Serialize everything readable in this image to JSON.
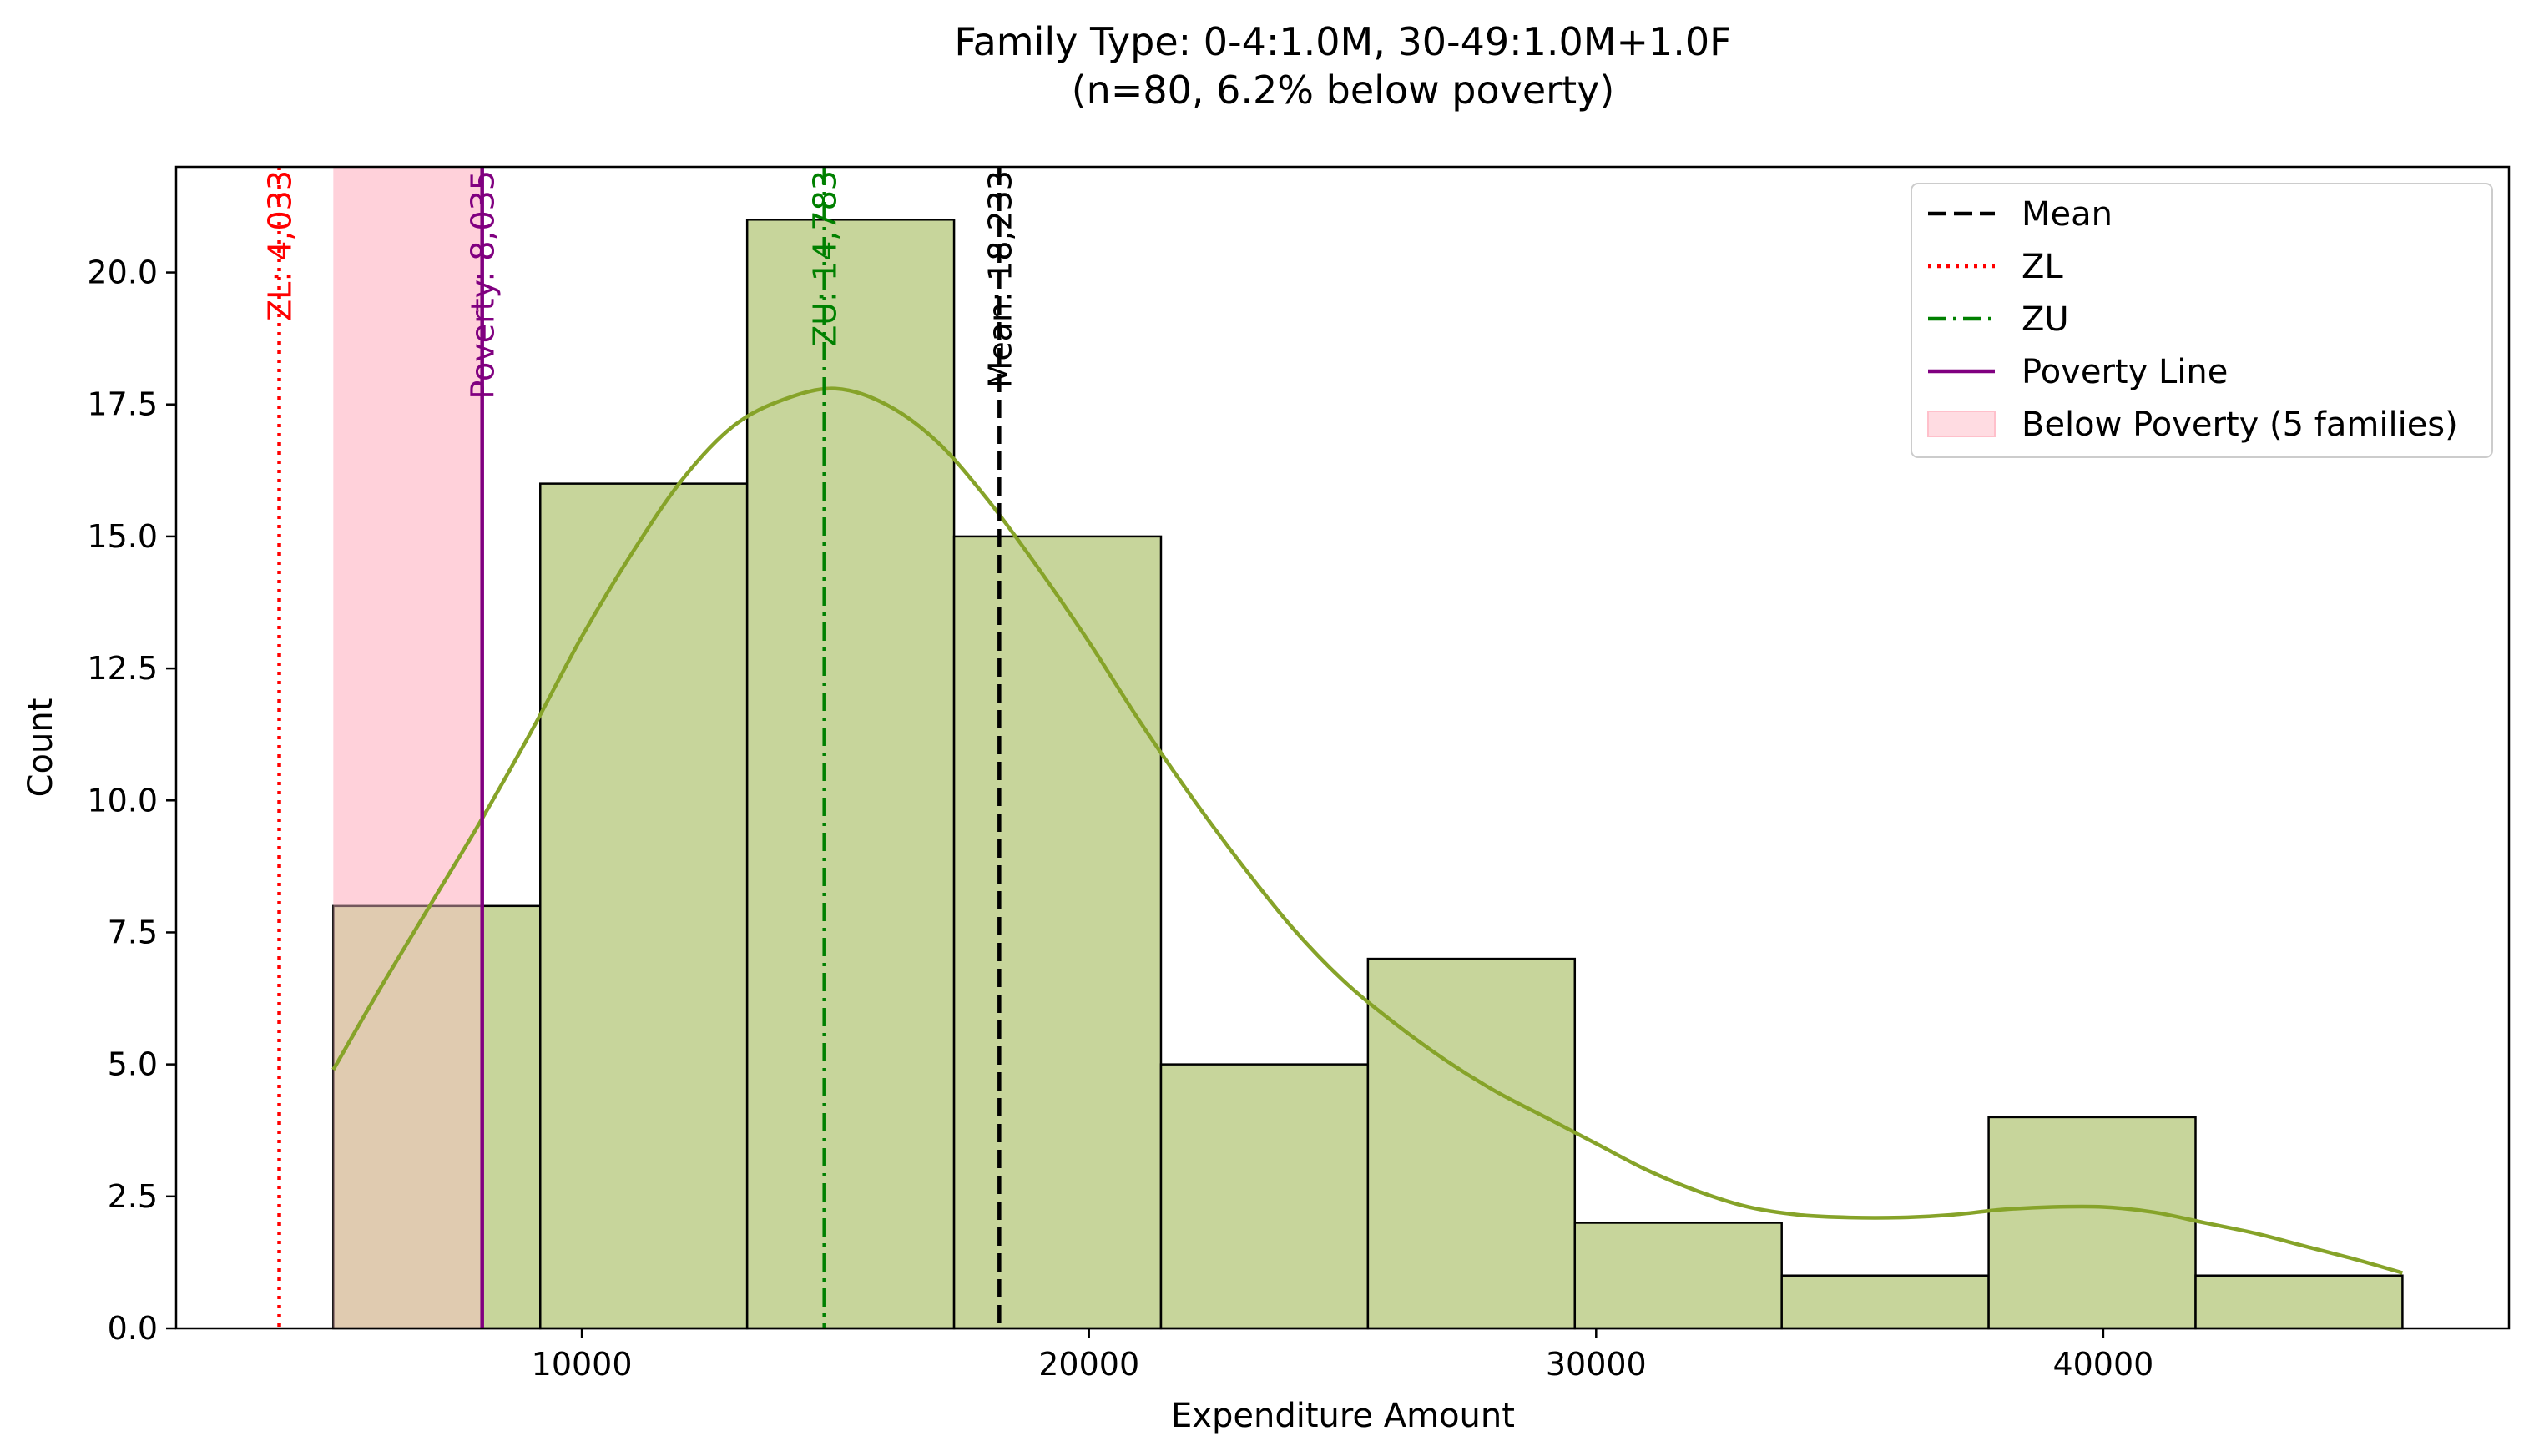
{
  "chart_data": {
    "type": "bar",
    "title_line1": "Family Type: 0-4:1.0M, 30-49:1.0M+1.0F",
    "title_line2": "(n=80, 6.2% below poverty)",
    "xlabel": "Expenditure Amount",
    "ylabel": "Count",
    "xlim": [
      2000,
      48000
    ],
    "ylim": [
      0,
      22
    ],
    "xticks": [
      10000,
      20000,
      30000,
      40000
    ],
    "xtick_labels": [
      "10000",
      "20000",
      "30000",
      "40000"
    ],
    "yticks": [
      0,
      2.5,
      5,
      7.5,
      10,
      12.5,
      15,
      17.5,
      20
    ],
    "ytick_labels": [
      "0.0",
      "2.5",
      "5.0",
      "7.5",
      "10.0",
      "12.5",
      "15.0",
      "17.5",
      "20.0"
    ],
    "bin_edges": [
      5100,
      9180,
      13260,
      17340,
      21420,
      25500,
      29580,
      33660,
      37740,
      41820,
      45900
    ],
    "counts": [
      8,
      16,
      21,
      15,
      5,
      7,
      2,
      1,
      4,
      1
    ],
    "kde": {
      "x": [
        5100,
        6000,
        7000,
        8000,
        9000,
        10000,
        11000,
        12000,
        13000,
        14000,
        15000,
        16000,
        17000,
        18000,
        19000,
        20000,
        21000,
        22000,
        23000,
        24000,
        25000,
        26000,
        27000,
        28000,
        29000,
        30000,
        31000,
        32000,
        33000,
        34000,
        35000,
        36000,
        37000,
        38000,
        39000,
        40000,
        41000,
        42000,
        43000,
        44000,
        45000,
        45900
      ],
      "y": [
        4.9,
        6.4,
        8.0,
        9.6,
        11.3,
        13.1,
        14.7,
        16.1,
        17.1,
        17.6,
        17.8,
        17.5,
        16.8,
        15.7,
        14.4,
        13.0,
        11.5,
        10.1,
        8.8,
        7.6,
        6.6,
        5.8,
        5.1,
        4.5,
        4.0,
        3.5,
        3.0,
        2.6,
        2.3,
        2.15,
        2.1,
        2.1,
        2.15,
        2.25,
        2.3,
        2.3,
        2.2,
        2.0,
        1.8,
        1.55,
        1.3,
        1.05
      ]
    },
    "vlines": [
      {
        "name": "Mean",
        "x": 18233,
        "label": "Mean: 18,233",
        "color": "#000000",
        "dash": "dashed"
      },
      {
        "name": "ZL",
        "x": 4033,
        "label": "ZL: 4,033",
        "color": "#ff0000",
        "dash": "dotted"
      },
      {
        "name": "ZU",
        "x": 14783,
        "label": "ZU: 14,783",
        "color": "#008000",
        "dash": "dashdot"
      },
      {
        "name": "Poverty Line",
        "x": 8035,
        "label": "Poverty: 8,035",
        "color": "#800080",
        "dash": "solid"
      }
    ],
    "poverty_shade": {
      "x0": 5100,
      "x1": 8035,
      "color": "#ffc0cb"
    },
    "legend": {
      "placement": "top-right",
      "entries": [
        "Mean",
        "ZL",
        "ZU",
        "Poverty Line",
        "Below Poverty (5 families)"
      ]
    },
    "colors": {
      "bar_fill": "#c4d396",
      "bar_stroke": "#000000",
      "kde": "#86a329"
    },
    "grid": false
  }
}
